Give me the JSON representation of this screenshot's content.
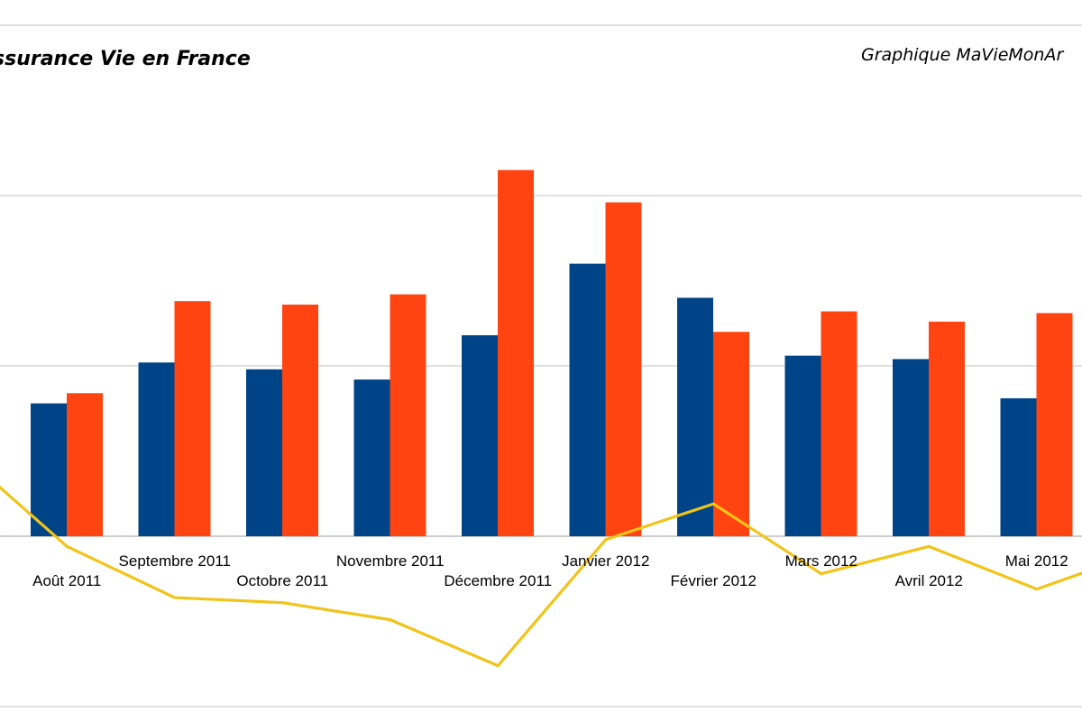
{
  "title": "ssurance Vie en France",
  "source": "Graphique MaVieMonAr",
  "chart_data": {
    "type": "bar",
    "categories": [
      "Août 2011",
      "Septembre 2011",
      "Octobre 2011",
      "Novembre 2011",
      "Décembre 2011",
      "Janvier 2012",
      "Février 2012",
      "Mars 2012",
      "Avril 2012",
      "Mai 2012"
    ],
    "label_rows": [
      "bottom",
      "top",
      "bottom",
      "top",
      "bottom",
      "top",
      "bottom",
      "top",
      "bottom",
      "top"
    ],
    "series": [
      {
        "type": "bar",
        "color": "#004488",
        "values": [
          7.8,
          10.2,
          9.8,
          9.2,
          11.8,
          16.0,
          14.0,
          10.6,
          10.4,
          8.1
        ]
      },
      {
        "type": "bar",
        "color": "#ff4411",
        "values": [
          8.4,
          13.8,
          13.6,
          14.2,
          21.5,
          19.6,
          12.0,
          13.2,
          12.6,
          13.1
        ]
      },
      {
        "type": "line",
        "color": "#f2c419",
        "values": [
          -0.6,
          -3.6,
          -3.9,
          -4.9,
          -7.6,
          -0.2,
          1.9,
          -2.2,
          -0.6,
          -3.1
        ]
      }
    ],
    "ylim": [
      -10.5,
      30
    ],
    "gridlines": [
      -10,
      0,
      10,
      20,
      30
    ],
    "grid": true
  }
}
